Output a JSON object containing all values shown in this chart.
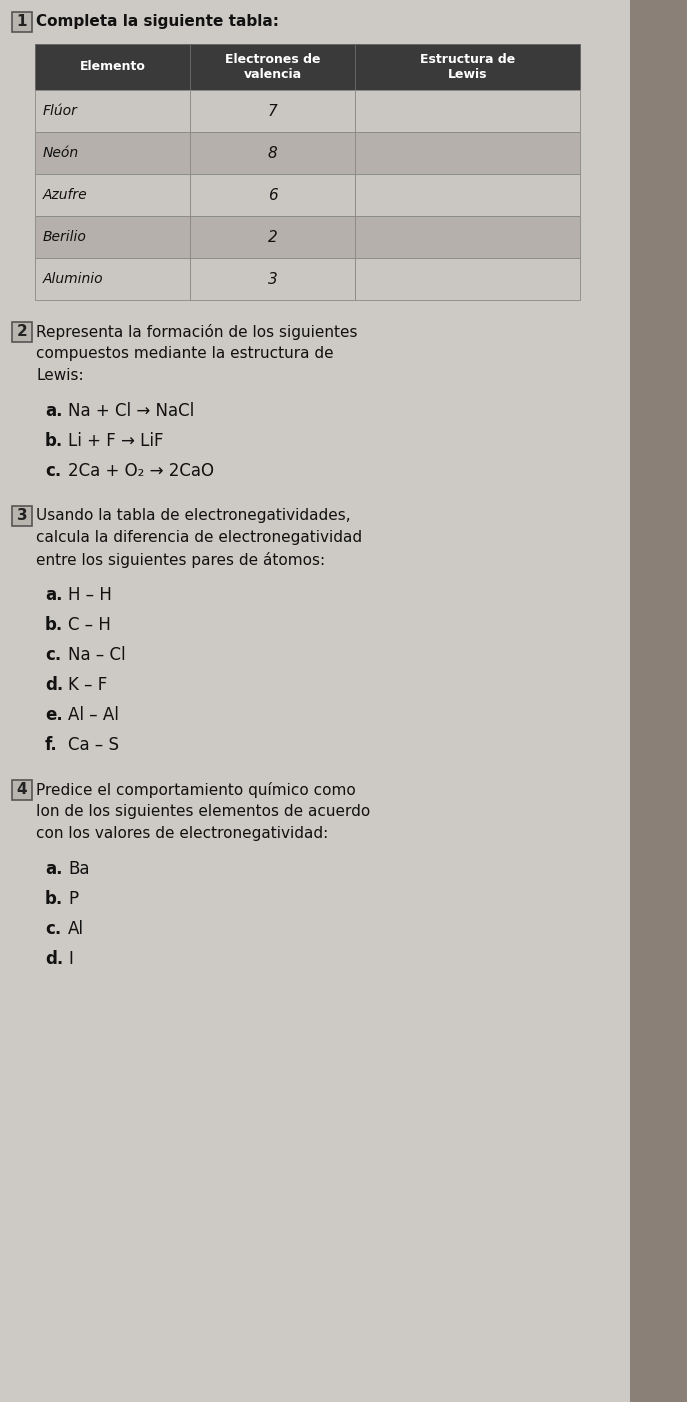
{
  "bg_color": "#cdc9c4",
  "right_strip_color": "#b0a8a0",
  "section1_number": "1",
  "section1_title": "Completa la siguiente tabla:",
  "table_header": [
    "Elemento",
    "Electrones de\nvalencia",
    "Estructura de\nLewis"
  ],
  "table_rows": [
    [
      "Flúor",
      "7",
      ""
    ],
    [
      "Neón",
      "8",
      ""
    ],
    [
      "Azufre",
      "6",
      ""
    ],
    [
      "Berilio",
      "2",
      ""
    ],
    [
      "Aluminio",
      "3",
      ""
    ]
  ],
  "header_bg": "#3a3a3a",
  "header_text": "#ffffff",
  "row_bg_light": "#cac6c1",
  "row_bg_dark": "#b5b0ab",
  "section2_number": "2",
  "section2_title": "Representa la formación de los siguientes\ncompuestos mediante la estructura de\nLewis:",
  "section2_items": [
    {
      "label": "a.",
      "text": "Na + Cl → NaCl"
    },
    {
      "label": "b.",
      "text": "Li + F → LiF"
    },
    {
      "label": "c.",
      "text": "2Ca + O₂ → 2CaO"
    }
  ],
  "section3_number": "3",
  "section3_title": "Usando la tabla de electronegatividades,\ncalcula la diferencia de electronegatividad\nentre los siguientes pares de átomos:",
  "section3_items": [
    {
      "label": "a.",
      "text": "H – H"
    },
    {
      "label": "b.",
      "text": "C – H"
    },
    {
      "label": "c.",
      "text": "Na – Cl"
    },
    {
      "label": "d.",
      "text": "K – F"
    },
    {
      "label": "e.",
      "text": "Al – Al"
    },
    {
      "label": "f.",
      "text": "Ca – S"
    }
  ],
  "section4_number": "4",
  "section4_title": "Predice el comportamiento químico como\nIon de los siguientes elementos de acuerdo\ncon los valores de electronegatividad:",
  "section4_items": [
    {
      "label": "a.",
      "text": "Ba"
    },
    {
      "label": "b.",
      "text": "P"
    },
    {
      "label": "c.",
      "text": "Al"
    },
    {
      "label": "d.",
      "text": "I"
    }
  ]
}
